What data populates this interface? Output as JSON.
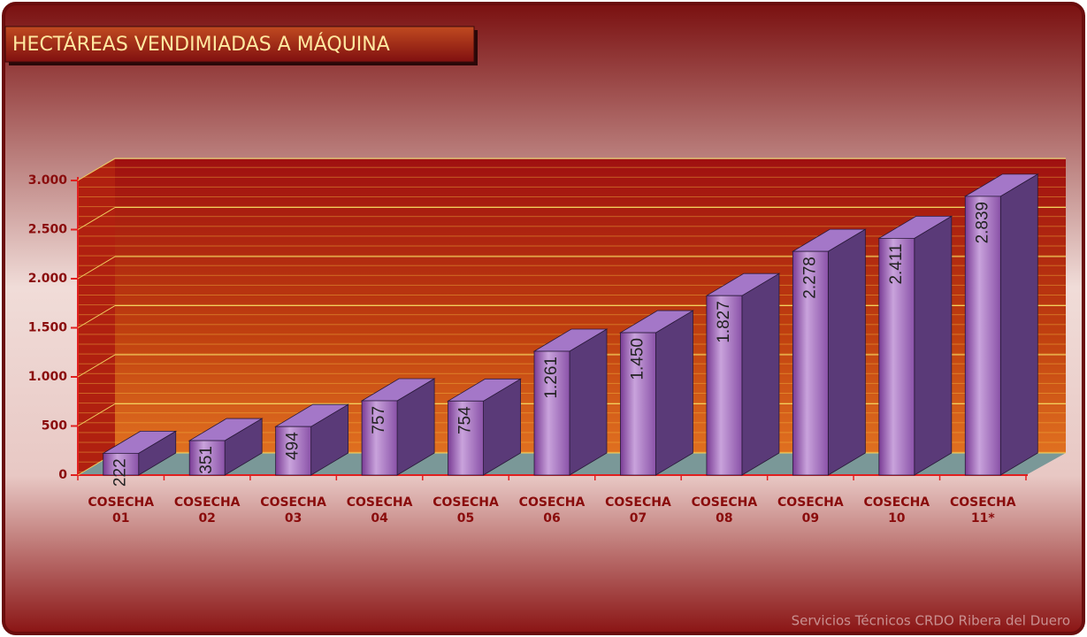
{
  "chart_data": {
    "type": "bar3d",
    "title": "HECTÁREAS VENDIMIADAS A MÁQUINA",
    "footer": "Servicios Técnicos CRDO Ribera del Duero",
    "categories": [
      "COSECHA 01",
      "COSECHA 02",
      "COSECHA 03",
      "COSECHA 04",
      "COSECHA 05",
      "COSECHA 06",
      "COSECHA 07",
      "COSECHA 08",
      "COSECHA 09",
      "COSECHA 10",
      "COSECHA 11*"
    ],
    "values": [
      222,
      351,
      494,
      757,
      754,
      1261,
      1450,
      1827,
      2278,
      2411,
      2839
    ],
    "value_labels": [
      "222",
      "351",
      "494",
      "757",
      "754",
      "1.261",
      "1.450",
      "1.827",
      "2.278",
      "2.411",
      "2.839"
    ],
    "color": "#9b67b8",
    "ylim": [
      0,
      3000
    ],
    "yticks": [
      0,
      500,
      {
        "value": 1000,
        "label": "1.000"
      },
      {
        "value": 1500,
        "label": "1.500"
      },
      {
        "value": 2000,
        "label": "2.000"
      },
      {
        "value": 2500,
        "label": "2.500"
      },
      {
        "value": 3000,
        "label": "3.000"
      }
    ],
    "grid": true
  }
}
